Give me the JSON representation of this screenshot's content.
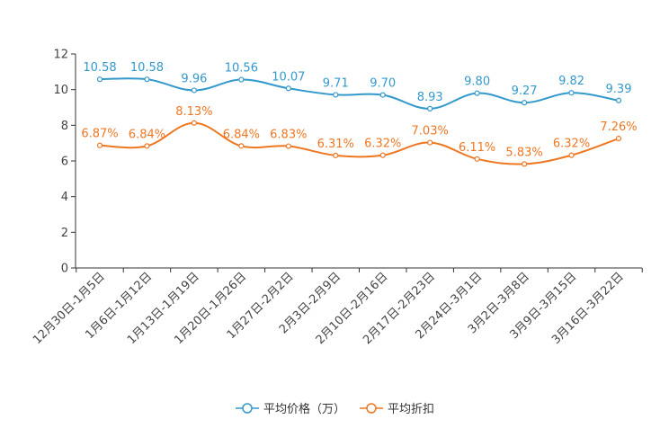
{
  "chart_data": {
    "type": "line",
    "title": "",
    "xlabel": "",
    "ylabel": "",
    "ylim": [
      0,
      12
    ],
    "yticks": [
      0,
      2,
      4,
      6,
      8,
      10,
      12
    ],
    "grid": false,
    "legend_position": "bottom",
    "categories": [
      "12月30日-1月5日",
      "1月6日-1月12日",
      "1月13日-1月19日",
      "1月20日-1月26日",
      "1月27日-2月2日",
      "2月3日-2月9日",
      "2月10日-2月16日",
      "2月17日-2月23日",
      "2月24日-3月1日",
      "3月2日-3月8日",
      "3月9日-3月15日",
      "3月16日-3月22日"
    ],
    "series": [
      {
        "name": "平均价格（万）",
        "color": "#3399cc",
        "values": [
          10.58,
          10.58,
          9.96,
          10.56,
          10.07,
          9.71,
          9.7,
          8.93,
          9.8,
          9.27,
          9.82,
          9.39
        ],
        "labels": [
          "10.58",
          "10.58",
          "9.96",
          "10.56",
          "10.07",
          "9.71",
          "9.70",
          "8.93",
          "9.80",
          "9.27",
          "9.82",
          "9.39"
        ]
      },
      {
        "name": "平均折扣",
        "color": "#ee7722",
        "values": [
          6.87,
          6.84,
          8.13,
          6.84,
          6.83,
          6.31,
          6.32,
          7.03,
          6.11,
          5.83,
          6.32,
          7.26
        ],
        "labels": [
          "6.87%",
          "6.84%",
          "8.13%",
          "6.84%",
          "6.83%",
          "6.31%",
          "6.32%",
          "7.03%",
          "6.11%",
          "5.83%",
          "6.32%",
          "7.26%"
        ]
      }
    ]
  }
}
